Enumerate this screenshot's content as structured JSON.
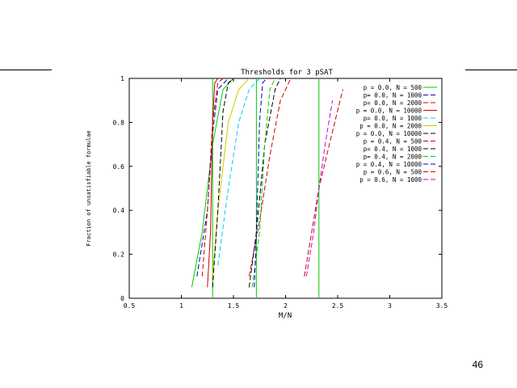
{
  "slide": {
    "page_number": "46"
  },
  "chart_data": {
    "type": "line",
    "title": "Thresholds for 3 pSAT",
    "xlabel": "M/N",
    "ylabel": "Fraction of unsatisfiable formulae",
    "xlim": [
      0.5,
      3.5
    ],
    "ylim": [
      0,
      1
    ],
    "xticks": [
      {
        "v": 0.5,
        "label": "0.5"
      },
      {
        "v": 1,
        "label": "1"
      },
      {
        "v": 1.5,
        "label": "1.5"
      },
      {
        "v": 2,
        "label": "2"
      },
      {
        "v": 2.5,
        "label": "2.5"
      },
      {
        "v": 3,
        "label": "3"
      },
      {
        "v": 3.5,
        "label": "3.5"
      }
    ],
    "yticks": [
      {
        "v": 0,
        "label": "0"
      },
      {
        "v": 0.2,
        "label": "0.2"
      },
      {
        "v": 0.4,
        "label": "0.4"
      },
      {
        "v": 0.6,
        "label": "0.6"
      },
      {
        "v": 0.8,
        "label": "0.8"
      },
      {
        "v": 1,
        "label": "1"
      }
    ],
    "grid": false,
    "legend_position": "top-right",
    "threshold_lines": [
      1.3,
      1.72,
      2.32
    ],
    "series": [
      {
        "name": "p = 0.0, N = 500",
        "color": "#00cc00",
        "x": [
          1.1,
          1.2,
          1.3,
          1.4,
          1.5
        ],
        "y": [
          0.05,
          0.3,
          0.7,
          0.95,
          1.0
        ],
        "dashed": false
      },
      {
        "name": "p= 0.0, N = 1000",
        "color": "#0000cc",
        "x": [
          1.15,
          1.25,
          1.3,
          1.35,
          1.45
        ],
        "y": [
          0.1,
          0.4,
          0.75,
          0.95,
          1.0
        ],
        "dashed": true
      },
      {
        "name": "p= 0.0, N = 2000",
        "color": "#cc0000",
        "x": [
          1.2,
          1.25,
          1.3,
          1.35,
          1.4
        ],
        "y": [
          0.1,
          0.4,
          0.8,
          0.98,
          1.0
        ],
        "dashed": true
      },
      {
        "name": "p = 0.0, N = 10000",
        "color": "#cc0000",
        "x": [
          1.25,
          1.28,
          1.3,
          1.32,
          1.35
        ],
        "y": [
          0.05,
          0.3,
          0.8,
          0.98,
          1.0
        ],
        "dashed": false
      },
      {
        "name": "p= 0.0, N = 1000",
        "color": "#00ccff",
        "x": [
          1.35,
          1.45,
          1.55,
          1.65,
          1.75
        ],
        "y": [
          0.15,
          0.5,
          0.8,
          0.95,
          1.0
        ],
        "dashed": true
      },
      {
        "name": "p = 0.0, N = 2000",
        "color": "#cccc00",
        "x": [
          1.3,
          1.35,
          1.45,
          1.55,
          1.65
        ],
        "y": [
          0.1,
          0.4,
          0.8,
          0.95,
          1.0
        ],
        "dashed": false
      },
      {
        "name": "p = 0.0, N = 10000",
        "color": "#000000",
        "x": [
          1.3,
          1.35,
          1.4,
          1.45,
          1.5
        ],
        "y": [
          0.05,
          0.4,
          0.85,
          0.98,
          1.0
        ],
        "dashed": true
      },
      {
        "name": "p = 0.4, N = 500",
        "color": "#cc0000",
        "x": [
          1.65,
          1.75,
          1.85,
          1.95,
          2.05
        ],
        "y": [
          0.1,
          0.35,
          0.65,
          0.9,
          1.0
        ],
        "dashed": true
      },
      {
        "name": "p= 0.4, N = 1000",
        "color": "#000000",
        "x": [
          1.65,
          1.72,
          1.8,
          1.9,
          1.95
        ],
        "y": [
          0.05,
          0.3,
          0.7,
          0.95,
          1.0
        ],
        "dashed": true
      },
      {
        "name": "p= 0.4, N = 2000",
        "color": "#00cc00",
        "x": [
          1.68,
          1.75,
          1.8,
          1.85,
          1.9
        ],
        "y": [
          0.05,
          0.3,
          0.7,
          0.95,
          1.0
        ],
        "dashed": true
      },
      {
        "name": "p = 0.4, N = 10000",
        "color": "#0000cc",
        "x": [
          1.7,
          1.72,
          1.75,
          1.78,
          1.82
        ],
        "y": [
          0.05,
          0.3,
          0.8,
          0.98,
          1.0
        ],
        "dashed": true
      },
      {
        "name": "p = 0.6, N = 500",
        "color": "#cc0000",
        "x": [
          2.18,
          2.25,
          2.32,
          2.42,
          2.55
        ],
        "y": [
          0.1,
          0.3,
          0.5,
          0.7,
          0.95
        ],
        "dashed": true
      },
      {
        "name": "p = 0.6, N = 1000",
        "color": "#cc00cc",
        "x": [
          2.2,
          2.27,
          2.32,
          2.38,
          2.45
        ],
        "y": [
          0.1,
          0.3,
          0.5,
          0.7,
          0.9
        ],
        "dashed": true
      }
    ]
  }
}
